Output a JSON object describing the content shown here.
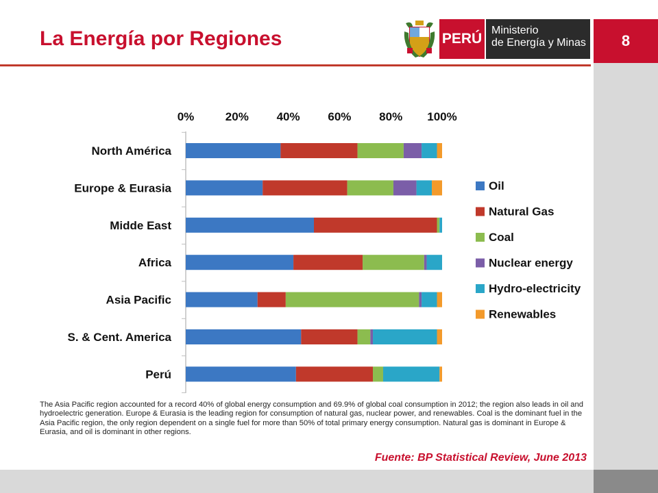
{
  "header": {
    "title": "La Energía por Regiones",
    "brand_country": "PERÚ",
    "brand_ministry_line1": "Ministerio",
    "brand_ministry_line2": "de Energía y Minas",
    "page_number": "8"
  },
  "colors": {
    "accent": "#c8102e",
    "oil": "#3c78c3",
    "natural_gas": "#c0392b",
    "coal": "#8cbc4f",
    "nuclear": "#7b5ea8",
    "hydro": "#2aa6c8",
    "renewables": "#f39a2b"
  },
  "chart_data": {
    "type": "bar",
    "orientation": "horizontal",
    "stacked": "percent",
    "xlim": [
      0,
      100
    ],
    "xticks": [
      "0%",
      "20%",
      "40%",
      "60%",
      "80%",
      "100%"
    ],
    "legend_position": "right",
    "categories": [
      "North América",
      "Europe & Eurasia",
      "Midde East",
      "Africa",
      "Asia Pacific",
      "S. & Cent. America",
      "Perú"
    ],
    "series": [
      {
        "name": "Oil",
        "color": "#3c78c3",
        "values": [
          37,
          30,
          50,
          42,
          28,
          45,
          43
        ]
      },
      {
        "name": "Natural Gas",
        "color": "#c0392b",
        "values": [
          30,
          33,
          48,
          27,
          11,
          22,
          30
        ]
      },
      {
        "name": "Coal",
        "color": "#8cbc4f",
        "values": [
          18,
          18,
          1,
          24,
          52,
          5,
          4
        ]
      },
      {
        "name": "Nuclear energy",
        "color": "#7b5ea8",
        "values": [
          7,
          9,
          0,
          1,
          1,
          1,
          0
        ]
      },
      {
        "name": "Hydro-electricity",
        "color": "#2aa6c8",
        "values": [
          6,
          6,
          1,
          6,
          6,
          25,
          22
        ]
      },
      {
        "name": "Renewables",
        "color": "#f39a2b",
        "values": [
          2,
          4,
          0,
          0,
          2,
          2,
          1
        ]
      }
    ]
  },
  "note": "The Asia Pacific region accounted for a record 40% of global energy consumption and 69.9% of global coal consumption in 2012; the region also leads in oil and hydroelectric generation. Europe & Eurasia is the leading region for consumption of natural gas, nuclear power, and renewables. Coal is the dominant fuel in the Asia Pacific region, the only region dependent on a single fuel for more than 50% of total primary energy consumption. Natural gas is dominant in Europe & Eurasia, and oil is dominant in other regions.",
  "source": "Fuente: BP Statistical Review, June 2013"
}
